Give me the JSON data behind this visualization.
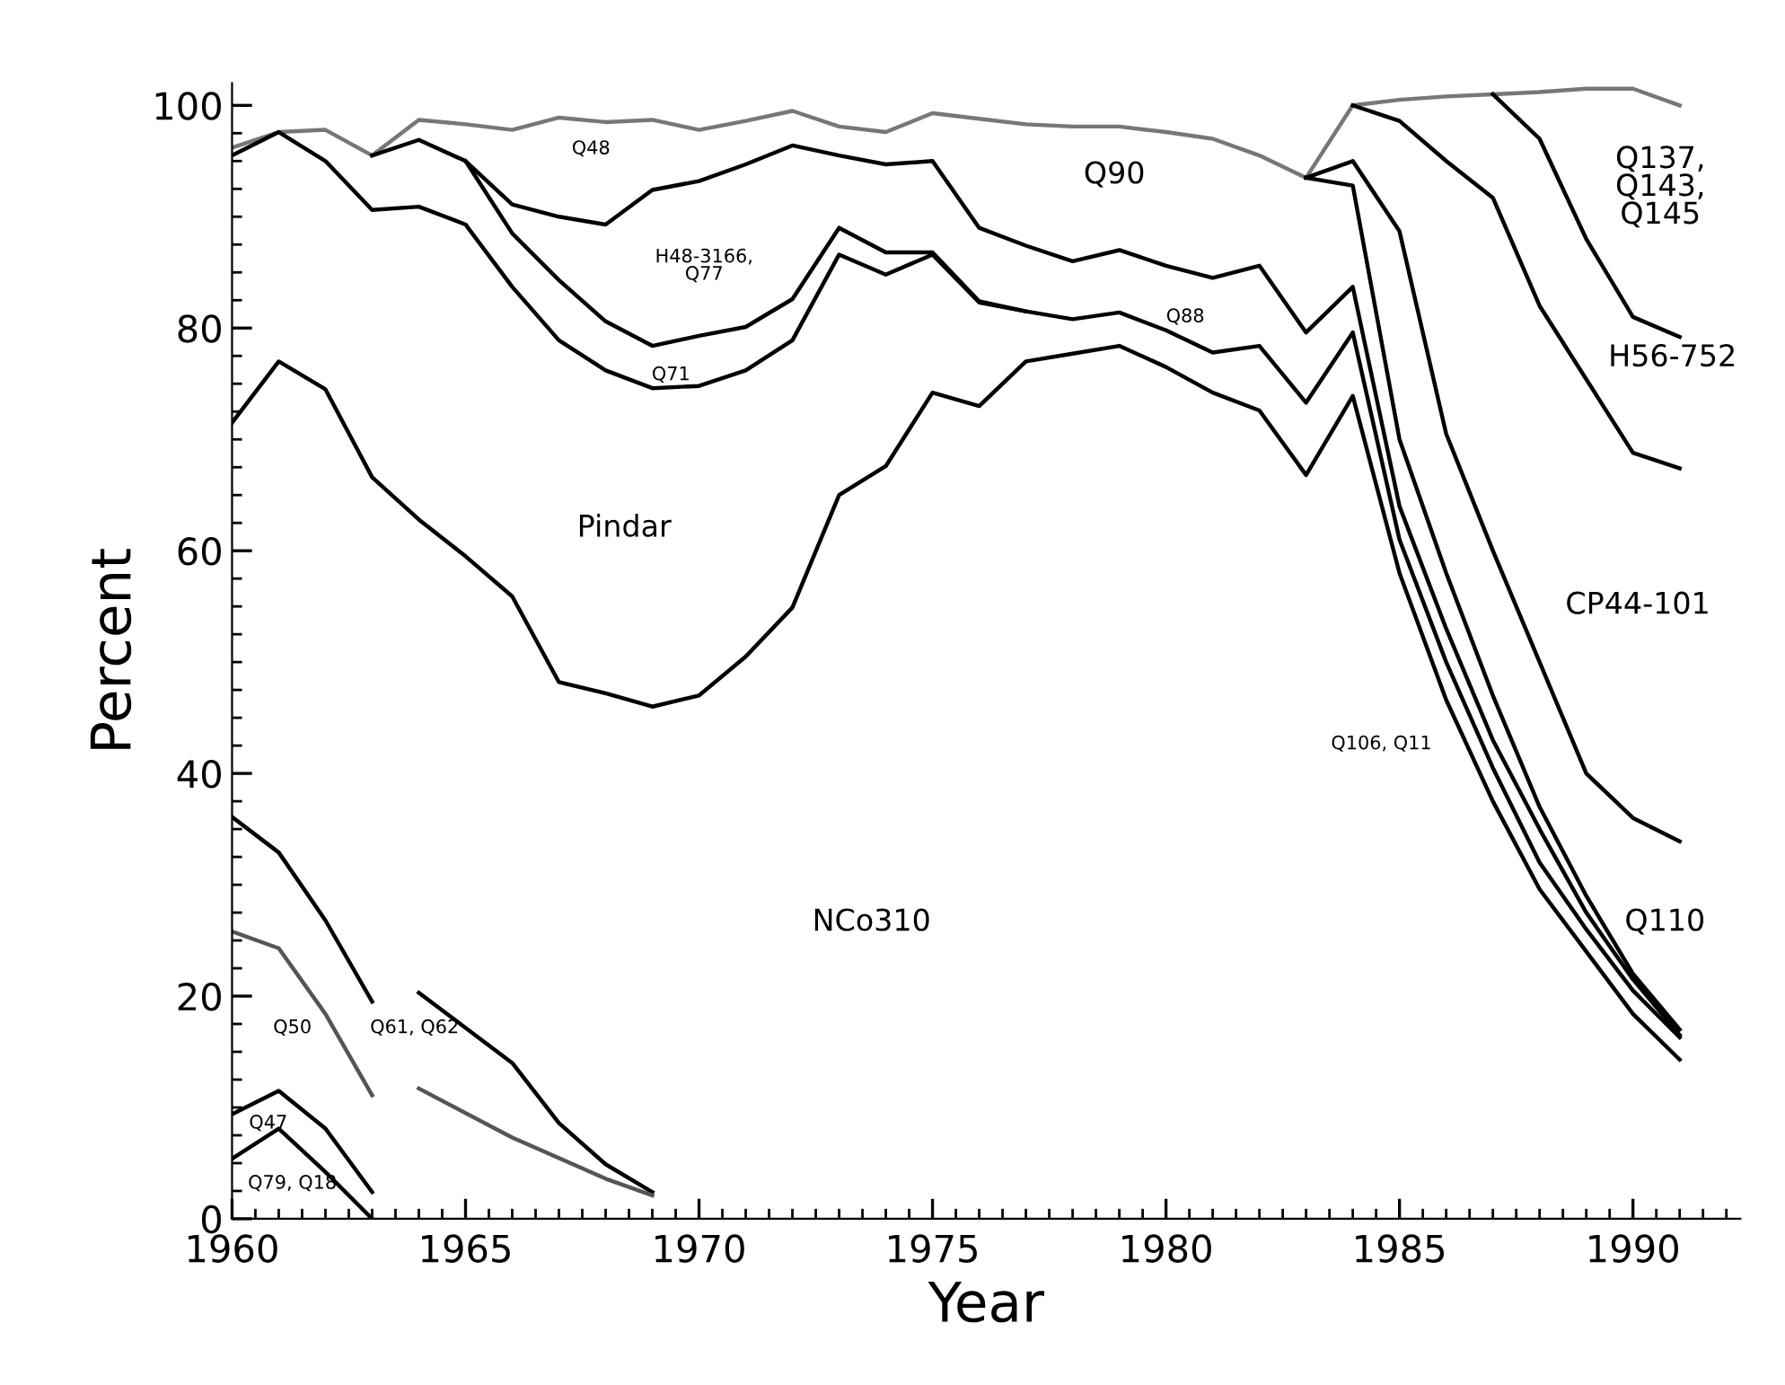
{
  "chart_data": {
    "type": "line",
    "xlabel": "Year",
    "ylabel": "Percent",
    "xlim": [
      1960,
      1992.3
    ],
    "ylim": [
      0,
      102
    ],
    "xticks": [
      1960,
      1965,
      1970,
      1975,
      1980,
      1985,
      1990,
      {
        "value": 1960.5,
        "label": null
      },
      {
        "value": 1961,
        "label": null
      },
      {
        "value": 1961.5,
        "label": null
      },
      {
        "value": 1962,
        "label": null
      },
      {
        "value": 1962.5,
        "label": null
      },
      {
        "value": 1963,
        "label": null
      },
      {
        "value": 1963.5,
        "label": null
      },
      {
        "value": 1964,
        "label": null
      },
      {
        "value": 1964.5,
        "label": null
      },
      {
        "value": 1965.5,
        "label": null
      },
      {
        "value": 1966,
        "label": null
      },
      {
        "value": 1966.5,
        "label": null
      },
      {
        "value": 1967,
        "label": null
      },
      {
        "value": 1967.5,
        "label": null
      },
      {
        "value": 1968,
        "label": null
      },
      {
        "value": 1968.5,
        "label": null
      },
      {
        "value": 1969,
        "label": null
      },
      {
        "value": 1969.5,
        "label": null
      },
      {
        "value": 1970.5,
        "label": null
      },
      {
        "value": 1971,
        "label": null
      },
      {
        "value": 1971.5,
        "label": null
      },
      {
        "value": 1972,
        "label": null
      },
      {
        "value": 1972.5,
        "label": null
      },
      {
        "value": 1973,
        "label": null
      },
      {
        "value": 1973.5,
        "label": null
      },
      {
        "value": 1974,
        "label": null
      },
      {
        "value": 1974.5,
        "label": null
      },
      {
        "value": 1975.5,
        "label": null
      },
      {
        "value": 1976,
        "label": null
      },
      {
        "value": 1976.5,
        "label": null
      },
      {
        "value": 1977,
        "label": null
      },
      {
        "value": 1977.5,
        "label": null
      },
      {
        "value": 1978,
        "label": null
      },
      {
        "value": 1978.5,
        "label": null
      },
      {
        "value": 1979,
        "label": null
      },
      {
        "value": 1979.5,
        "label": null
      },
      {
        "value": 1980.5,
        "label": null
      },
      {
        "value": 1981,
        "label": null
      },
      {
        "value": 1981.5,
        "label": null
      },
      {
        "value": 1982,
        "label": null
      },
      {
        "value": 1982.5,
        "label": null
      },
      {
        "value": 1983,
        "label": null
      },
      {
        "value": 1983.5,
        "label": null
      },
      {
        "value": 1984,
        "label": null
      },
      {
        "value": 1984.5,
        "label": null
      },
      {
        "value": 1985.5,
        "label": null
      },
      {
        "value": 1986,
        "label": null
      },
      {
        "value": 1986.5,
        "label": null
      },
      {
        "value": 1987,
        "label": null
      },
      {
        "value": 1987.5,
        "label": null
      },
      {
        "value": 1988,
        "label": null
      },
      {
        "value": 1988.5,
        "label": null
      },
      {
        "value": 1989,
        "label": null
      },
      {
        "value": 1989.5,
        "label": null
      },
      {
        "value": 1990.5,
        "label": null
      },
      {
        "value": 1991,
        "label": null
      },
      {
        "value": 1991.5,
        "label": null
      },
      {
        "value": 1992,
        "label": null
      }
    ],
    "yticks": [
      0,
      20,
      40,
      60,
      80,
      100,
      {
        "value": 2.5,
        "label": null
      },
      {
        "value": 5,
        "label": null
      },
      {
        "value": 7.5,
        "label": null
      },
      {
        "value": 10,
        "label": null
      },
      {
        "value": 12.5,
        "label": null
      },
      {
        "value": 15,
        "label": null
      },
      {
        "value": 17.5,
        "label": null
      },
      {
        "value": 22.5,
        "label": null
      },
      {
        "value": 25,
        "label": null
      },
      {
        "value": 27.5,
        "label": null
      },
      {
        "value": 30,
        "label": null
      },
      {
        "value": 32.5,
        "label": null
      },
      {
        "value": 35,
        "label": null
      },
      {
        "value": 37.5,
        "label": null
      },
      {
        "value": 42.5,
        "label": null
      },
      {
        "value": 45,
        "label": null
      },
      {
        "value": 47.5,
        "label": null
      },
      {
        "value": 50,
        "label": null
      },
      {
        "value": 52.5,
        "label": null
      },
      {
        "value": 55,
        "label": null
      },
      {
        "value": 57.5,
        "label": null
      },
      {
        "value": 62.5,
        "label": null
      },
      {
        "value": 65,
        "label": null
      },
      {
        "value": 67.5,
        "label": null
      },
      {
        "value": 70,
        "label": null
      },
      {
        "value": 72.5,
        "label": null
      },
      {
        "value": 75,
        "label": null
      },
      {
        "value": 77.5,
        "label": null
      },
      {
        "value": 82.5,
        "label": null
      },
      {
        "value": 85,
        "label": null
      },
      {
        "value": 87.5,
        "label": null
      },
      {
        "value": 90,
        "label": null
      },
      {
        "value": 92.5,
        "label": null
      },
      {
        "value": 95,
        "label": null
      },
      {
        "value": 97.5,
        "label": null
      }
    ],
    "grid": false,
    "legend": false,
    "line_style": "solid",
    "marker": "none",
    "series": [
      {
        "color": "#777777",
        "x": [
          1960,
          1961,
          1962,
          1963,
          1964,
          1965,
          1966,
          1967,
          1968,
          1969,
          1970,
          1971,
          1972,
          1973,
          1974,
          1975,
          1976,
          1977,
          1978,
          1979,
          1980,
          1981,
          1982,
          1983,
          1984,
          1985,
          1986,
          1987,
          1988,
          1989,
          1990,
          1991
        ],
        "values": [
          96.2,
          97.6,
          97.8,
          95.5,
          98.7,
          98.3,
          97.8,
          98.9,
          98.5,
          98.7,
          97.8,
          98.6,
          99.5,
          98.1,
          97.6,
          99.3,
          98.8,
          98.3,
          98.1,
          98.1,
          97.6,
          97,
          95.5,
          93.5,
          100,
          100.5,
          100.8,
          101,
          101.2,
          101.5,
          101.5,
          100
        ]
      },
      {
        "color": "#000000",
        "x": [
          1960,
          1961,
          1962,
          1963,
          1964,
          1965,
          1966,
          1967,
          1968,
          1969,
          1970,
          1971,
          1972,
          1973,
          1974,
          1975,
          1976,
          1977,
          1978,
          1979,
          1980,
          1981,
          1982,
          1983,
          1984,
          1985,
          1986,
          1987,
          1988,
          1989,
          1990,
          1991
        ],
        "values": [
          95.5,
          97.6,
          95,
          90.6,
          90.9,
          89.3,
          83.7,
          78.9,
          76.2,
          74.6,
          74.8,
          76.2,
          78.9,
          86.6,
          84.8,
          86.6,
          82.3,
          81.5,
          80.8,
          81.4,
          79.8,
          77.8,
          78.4,
          73.3,
          79.6,
          61,
          50,
          40.5,
          32,
          26,
          20.5,
          16.3
        ]
      },
      {
        "color": "#000000",
        "x": [
          1963,
          1964,
          1965,
          1966,
          1967,
          1968,
          1969,
          1970,
          1971,
          1972,
          1973,
          1974,
          1975,
          1976,
          1977
        ],
        "values": [
          95.5,
          96.9,
          95,
          88.5,
          84.3,
          80.6,
          78.4,
          79.3,
          80.1,
          82.6,
          89,
          86.8,
          86.8,
          82.4,
          81.5
        ]
      },
      {
        "color": "#000000",
        "x": [
          1965,
          1966,
          1967,
          1968,
          1969,
          1970,
          1971,
          1972,
          1973,
          1974,
          1975,
          1976,
          1977,
          1978,
          1979,
          1980,
          1981,
          1982,
          1983,
          1984,
          1985,
          1986,
          1987,
          1988,
          1989,
          1990,
          1991
        ],
        "values": [
          95,
          91.1,
          90,
          89.3,
          92.4,
          93.2,
          94.7,
          96.4,
          95.5,
          94.7,
          95,
          89,
          87.4,
          86,
          87,
          85.6,
          84.5,
          85.6,
          79.6,
          83.7,
          64,
          53,
          43,
          35,
          27.5,
          21.5,
          16.5
        ]
      },
      {
        "color": "#000000",
        "x": [
          1983,
          1984,
          1985,
          1986,
          1987,
          1988,
          1989,
          1990,
          1991
        ],
        "values": [
          93.5,
          92.8,
          70,
          58,
          47,
          37,
          29,
          22,
          17
        ]
      },
      {
        "color": "#000000",
        "x": [
          1983,
          1984,
          1985,
          1986,
          1987,
          1988,
          1989,
          1990,
          1991
        ],
        "values": [
          93.5,
          95,
          88.7,
          70.5,
          60,
          50,
          40,
          36,
          33.9
        ]
      },
      {
        "color": "#000000",
        "x": [
          1984,
          1985,
          1986,
          1987,
          1988,
          1989,
          1990,
          1991
        ],
        "values": [
          100,
          98.6,
          95,
          91.7,
          82,
          75.4,
          68.8,
          67.4
        ]
      },
      {
        "color": "#000000",
        "x": [
          1987,
          1988,
          1989,
          1990,
          1991
        ],
        "values": [
          101,
          97,
          88,
          81,
          79.2
        ]
      },
      {
        "color": "#000000",
        "x": [
          1960,
          1961,
          1962,
          1963,
          1964,
          1965,
          1966,
          1967,
          1968,
          1969,
          1970,
          1971,
          1972,
          1973,
          1974,
          1975,
          1976,
          1977,
          1978,
          1979,
          1980,
          1981,
          1982,
          1983,
          1984,
          1985,
          1986,
          1987,
          1988,
          1989,
          1990,
          1991
        ],
        "values": [
          71.5,
          77,
          74.5,
          66.6,
          62.8,
          59.5,
          55.9,
          48.2,
          47.2,
          46,
          47,
          50.5,
          54.9,
          65,
          67.6,
          74.2,
          73,
          77,
          77.7,
          78.4,
          76.5,
          74.2,
          72.6,
          66.8,
          73.9,
          58,
          46.6,
          37.5,
          29.6,
          24,
          18.4,
          14.3
        ]
      },
      {
        "color": "#000000",
        "x": [
          1960,
          1961,
          1962,
          1963
        ],
        "values": [
          36.1,
          32.9,
          26.8,
          19.5
        ]
      },
      {
        "color": "#000000",
        "x": [
          1964,
          1966,
          1967,
          1968,
          1969
        ],
        "values": [
          20.3,
          14,
          8.6,
          4.9,
          2.4
        ]
      },
      {
        "color": "#555555",
        "x": [
          1960,
          1961,
          1962,
          1963
        ],
        "values": [
          25.8,
          24.3,
          18.4,
          11.1
        ]
      },
      {
        "color": "#555555",
        "x": [
          1964,
          1966,
          1968,
          1969
        ],
        "values": [
          11.7,
          7.3,
          3.6,
          2.1
        ]
      },
      {
        "color": "#000000",
        "x": [
          1960,
          1961,
          1962,
          1963
        ],
        "values": [
          9.4,
          11.5,
          8.1,
          2.4
        ]
      },
      {
        "color": "#000000",
        "x": [
          1960,
          1961,
          1962,
          1963
        ],
        "values": [
          5.4,
          8.1,
          4.2,
          0
        ]
      }
    ],
    "annotations": [
      "Pindar",
      "NCo310",
      "Q90",
      "Q137,\nQ143,\nQ145",
      "H56-752",
      "CP44-101",
      "Q110",
      "Q48",
      "H48-3166,\nQ77",
      "Q71",
      "Q88",
      "Q106, Q11",
      "Q50",
      "Q61, Q62",
      "Q47",
      "Q79, Q18"
    ]
  }
}
